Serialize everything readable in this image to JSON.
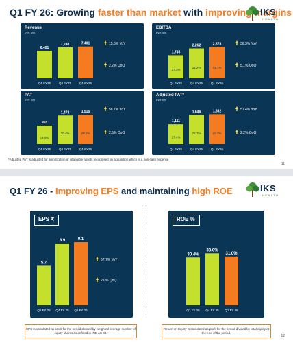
{
  "colors": {
    "navy": "#0b3554",
    "lime": "#c5e02c",
    "orange": "#f47b20",
    "title": "#0b2d4d",
    "growth_arrow": "#f5e04a"
  },
  "logo": {
    "brand": "IKS",
    "tagline": "HEALTH"
  },
  "slide11": {
    "title_parts": [
      "Q1 FY 26: Growing ",
      "faster than market",
      " with ",
      "improving margins"
    ],
    "footnote": "*Adjusted PAT is adjusted for amortization of intangible assets recognised on acquisition which is a non-cash expense",
    "page": "11"
  },
  "slide12": {
    "title_parts": [
      "Q1 FY 26 - ",
      "Improving EPS",
      " and maintaining ",
      "high ROE"
    ],
    "eps_note": "EPS is calculated as profit for the period divided by weighted average number of equity shares as defined in IND AS 33.",
    "roe_note": "Return on Equity is calculated as profit for the period divided by total equity at the end of the period.",
    "page": "12"
  },
  "chart_data": [
    {
      "id": "revenue",
      "type": "bar",
      "title": "Revenue",
      "unit": "INR Mn",
      "categories": [
        "Q1 FY25",
        "Q4 FY25",
        "Q1 FY26"
      ],
      "values": [
        6401,
        7240,
        7401
      ],
      "value_labels": [
        "6,401",
        "7,240",
        "7,401"
      ],
      "margin_labels": [
        "",
        "",
        ""
      ],
      "ylim": [
        0,
        8000
      ],
      "growth": [
        "15.6% YoY",
        "2.2% QoQ"
      ]
    },
    {
      "id": "ebitda",
      "type": "bar",
      "title": "EBITDA",
      "unit": "INR Mn",
      "categories": [
        "Q1 FY25",
        "Q4 FY25",
        "Q1 FY26"
      ],
      "values": [
        1745,
        2262,
        2378
      ],
      "value_labels": [
        "1,745",
        "2,262",
        "2,378"
      ],
      "margin_labels": [
        "27.3%",
        "31.2%",
        "32.1%"
      ],
      "ylim": [
        0,
        2600
      ],
      "growth": [
        "36.3% YoY",
        "5.1% QoQ"
      ]
    },
    {
      "id": "pat",
      "type": "bar",
      "title": "PAT",
      "unit": "INR Mn",
      "categories": [
        "Q1 FY25",
        "Q4 FY25",
        "Q1 FY26"
      ],
      "values": [
        955,
        1478,
        1515
      ],
      "value_labels": [
        "955",
        "1,478",
        "1,515"
      ],
      "margin_labels": [
        "14.9%",
        "20.4%",
        "20.5%"
      ],
      "ylim": [
        0,
        1700
      ],
      "growth": [
        "58.7% YoY",
        "2.5% QoQ"
      ]
    },
    {
      "id": "adj_pat",
      "type": "bar",
      "title": "Adjusted PAT*",
      "unit": "INR Mn",
      "categories": [
        "Q1 FY25",
        "Q4 FY25",
        "Q1 FY26"
      ],
      "values": [
        1111,
        1646,
        1682
      ],
      "value_labels": [
        "1,111",
        "1,646",
        "1,682"
      ],
      "margin_labels": [
        "17.4%",
        "22.7%",
        "22.7%"
      ],
      "ylim": [
        0,
        1850
      ],
      "growth": [
        "51.4% YoY",
        "2.2% QoQ"
      ]
    },
    {
      "id": "eps",
      "type": "bar",
      "title": "EPS ₹",
      "unit": "",
      "categories": [
        "Q1 FY 25",
        "Q4 FY 25",
        "Q1 FY 26"
      ],
      "values": [
        5.7,
        8.9,
        9.1
      ],
      "value_labels": [
        "5.7",
        "8.9",
        "9.1"
      ],
      "margin_labels": [
        "",
        "",
        ""
      ],
      "ylim": [
        0,
        9.5
      ],
      "growth": [
        "57.7% YoY",
        "2.0% QoQ"
      ]
    },
    {
      "id": "roe",
      "type": "bar",
      "title": "ROE %",
      "unit": "",
      "categories": [
        "Q1 FY 25",
        "Q4 FY 25",
        "Q1 FY 26"
      ],
      "values": [
        30.4,
        33.0,
        31.0
      ],
      "value_labels": [
        "30.4%",
        "33.0%",
        "31.0%"
      ],
      "margin_labels": [
        "",
        "",
        ""
      ],
      "ylim": [
        0,
        34
      ],
      "growth": []
    }
  ]
}
